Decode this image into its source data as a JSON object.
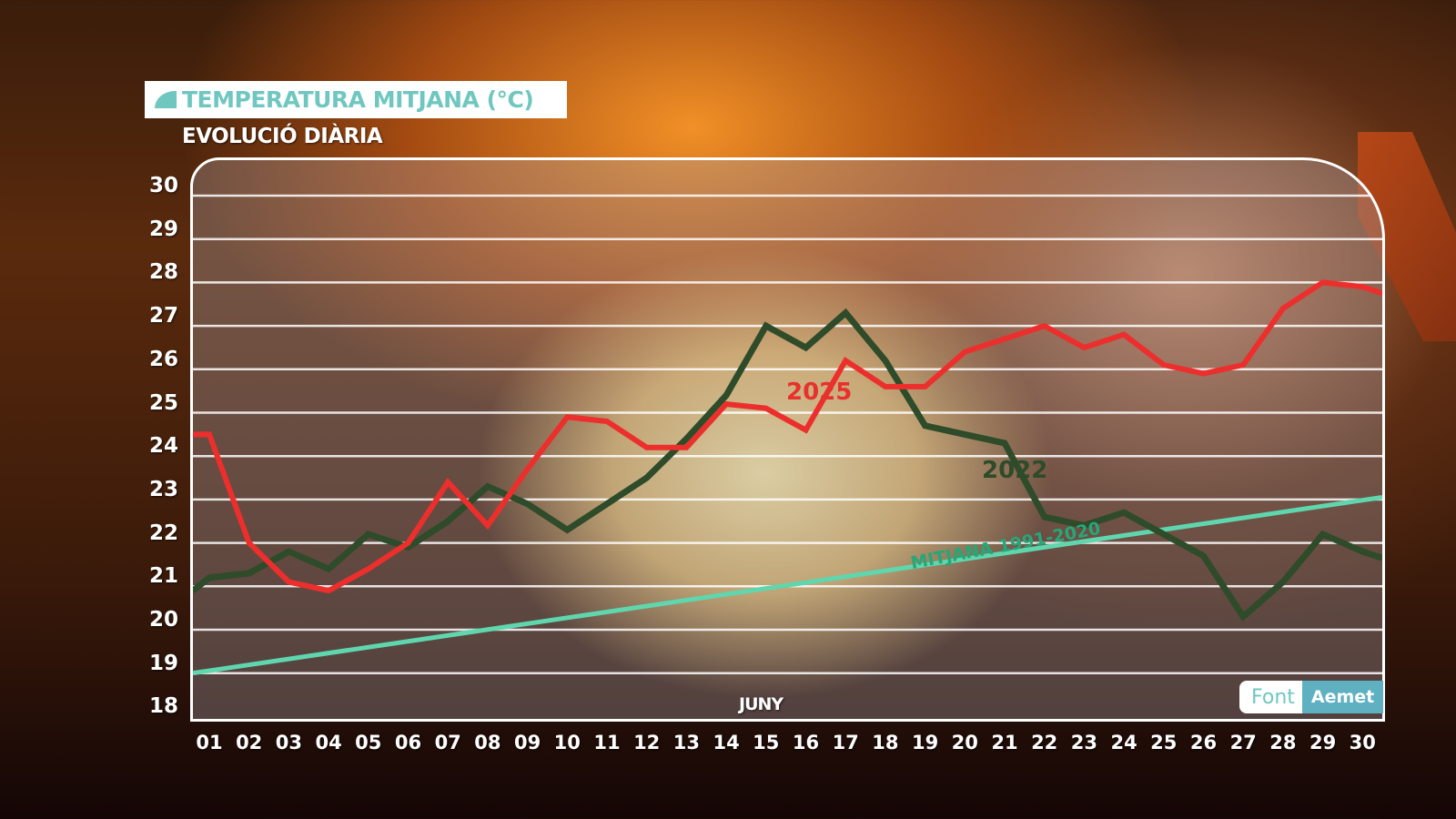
{
  "header": {
    "title": "TEMPERATURA MITJANA (°C)",
    "subtitle": "EVOLUCIÓ DIÀRIA"
  },
  "axis": {
    "month_label": "JUNY",
    "y_ticks": [
      "30",
      "29",
      "28",
      "27",
      "26",
      "25",
      "24",
      "23",
      "22",
      "21",
      "20",
      "19",
      "18"
    ],
    "x_ticks": [
      "01",
      "02",
      "03",
      "04",
      "05",
      "06",
      "07",
      "08",
      "09",
      "10",
      "11",
      "12",
      "13",
      "14",
      "15",
      "16",
      "17",
      "18",
      "19",
      "20",
      "21",
      "22",
      "23",
      "24",
      "25",
      "26",
      "27",
      "28",
      "29",
      "30"
    ]
  },
  "labels": {
    "series_2025": "2025",
    "series_2022": "2022",
    "average": "MITJANA 1991-2020"
  },
  "source": {
    "key": "Font",
    "value": "Aemet"
  },
  "colors": {
    "series_2025": "#ec2f2c",
    "series_2022": "#2e4b2a",
    "average": "#5fd6ae",
    "title_accent": "#6fc7c0",
    "source_badge": "#5fb1c2"
  },
  "chart_data": {
    "type": "line",
    "title": "TEMPERATURA MITJANA (°C)",
    "subtitle": "EVOLUCIÓ DIÀRIA",
    "xlabel": "JUNY",
    "ylabel": "°C",
    "ylim": [
      18,
      30
    ],
    "grid": true,
    "x": [
      "01",
      "02",
      "03",
      "04",
      "05",
      "06",
      "07",
      "08",
      "09",
      "10",
      "11",
      "12",
      "13",
      "14",
      "15",
      "16",
      "17",
      "18",
      "19",
      "20",
      "21",
      "22",
      "23",
      "24",
      "25",
      "26",
      "27",
      "28",
      "29",
      "30"
    ],
    "series": [
      {
        "name": "2025",
        "color": "#ec2f2c",
        "values": [
          24.5,
          22.0,
          21.1,
          20.9,
          21.4,
          22.0,
          23.4,
          22.4,
          23.7,
          24.9,
          24.8,
          24.2,
          24.2,
          25.2,
          25.1,
          24.6,
          26.2,
          25.6,
          25.6,
          26.4,
          26.7,
          27.0,
          26.5,
          26.8,
          26.1,
          25.9,
          26.1,
          27.4,
          28.0,
          27.9
        ]
      },
      {
        "name": "2022",
        "color": "#2e4b2a",
        "values": [
          21.2,
          21.3,
          21.8,
          21.4,
          22.2,
          21.9,
          22.5,
          23.3,
          22.9,
          22.3,
          22.9,
          23.5,
          24.4,
          25.4,
          27.0,
          26.5,
          27.3,
          26.2,
          24.7,
          24.5,
          24.3,
          22.6,
          22.4,
          22.7,
          22.2,
          21.7,
          20.3,
          21.1,
          22.2,
          21.8
        ]
      },
      {
        "name": "MITJANA 1991-2020",
        "color": "#5fd6ae",
        "values": [
          19.1,
          19.2,
          19.4,
          19.5,
          19.6,
          19.8,
          19.9,
          20.0,
          20.2,
          20.3,
          20.4,
          20.6,
          20.7,
          20.8,
          21.0,
          21.1,
          21.2,
          21.4,
          21.5,
          21.6,
          21.8,
          21.9,
          22.0,
          22.2,
          22.3,
          22.4,
          22.6,
          22.7,
          22.8,
          23.0
        ]
      }
    ],
    "annotations": [
      "2025",
      "2022",
      "MITJANA 1991-2020"
    ],
    "source": "Font Aemet"
  }
}
